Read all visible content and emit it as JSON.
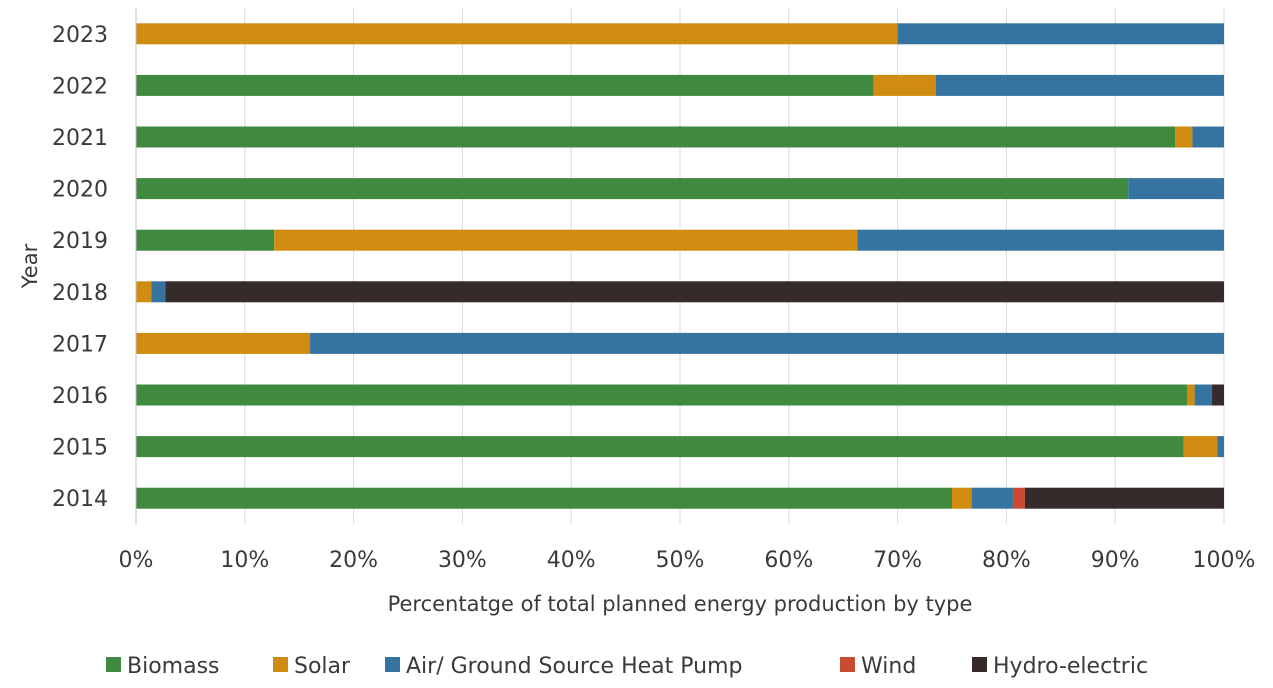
{
  "chart_data": {
    "type": "bar",
    "orientation": "horizontal",
    "stacked": "percent",
    "title": "",
    "xlabel": "Percentatge of total planned energy production by type",
    "ylabel": "Year",
    "xlim": [
      0,
      100
    ],
    "x_ticks": [
      "0%",
      "10%",
      "20%",
      "30%",
      "40%",
      "50%",
      "60%",
      "70%",
      "80%",
      "90%",
      "100%"
    ],
    "grid": "vertical",
    "legend_position": "bottom",
    "categories": [
      "2023",
      "2022",
      "2021",
      "2020",
      "2019",
      "2018",
      "2017",
      "2016",
      "2015",
      "2014"
    ],
    "series": [
      {
        "name": "Biomass",
        "color": "#3f8a3f",
        "values": [
          0,
          67.8,
          95.5,
          91.2,
          12.7,
          0,
          0,
          96.6,
          96.3,
          75
        ]
      },
      {
        "name": "Solar",
        "color": "#d08c10",
        "values": [
          70,
          5.7,
          1.6,
          0,
          53.6,
          1.4,
          16,
          0.7,
          3.1,
          1.8
        ]
      },
      {
        "name": "Air/ Ground Source Heat Pump",
        "color": "#3574a0",
        "values": [
          30,
          26.5,
          2.9,
          8.8,
          33.7,
          1.3,
          84,
          1.6,
          0.6,
          3.8
        ]
      },
      {
        "name": "Wind",
        "color": "#c84b32",
        "values": [
          0,
          0,
          0,
          0,
          0,
          0,
          0,
          0,
          0,
          1.1
        ]
      },
      {
        "name": "Hydro-electric",
        "color": "#352b2b",
        "values": [
          0,
          0,
          0,
          0,
          0,
          97.3,
          0,
          1.1,
          0,
          18.3
        ]
      }
    ]
  }
}
